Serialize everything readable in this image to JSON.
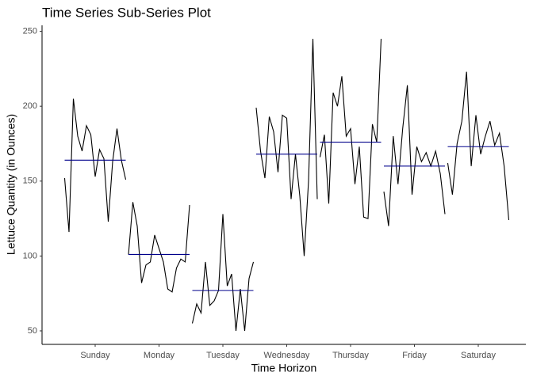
{
  "chart_data": {
    "type": "subseries",
    "title": "Time Series Sub-Series Plot",
    "x_label": "Time Horizon",
    "y_label": "Lettuce Quantity (in Ounces)",
    "categories": [
      "Sunday",
      "Monday",
      "Tuesday",
      "Wednesday",
      "Thursday",
      "Friday",
      "Saturday"
    ],
    "values": [
      [
        152,
        116,
        205,
        180,
        170,
        187,
        181,
        153,
        171,
        165,
        123,
        163,
        185,
        164,
        151
      ],
      [
        101,
        136,
        120,
        82,
        94,
        96,
        114,
        105,
        96,
        78,
        76,
        92,
        98,
        96,
        134
      ],
      [
        55,
        68,
        62,
        96,
        67,
        70,
        77,
        128,
        80,
        88,
        50,
        78,
        50,
        85,
        96
      ],
      [
        199,
        170,
        152,
        193,
        183,
        156,
        194,
        192,
        138,
        168,
        140,
        100,
        150,
        245,
        138
      ],
      [
        166,
        181,
        135,
        209,
        200,
        220,
        180,
        185,
        148,
        173,
        126,
        125,
        188,
        176,
        245
      ],
      [
        143,
        120,
        180,
        148,
        185,
        214,
        141,
        173,
        163,
        169,
        160,
        170,
        155,
        128
      ],
      [
        162,
        141,
        175,
        190,
        223,
        160,
        194,
        168,
        180,
        190,
        174,
        182,
        160,
        124
      ]
    ],
    "means": [
      164,
      101,
      77,
      168,
      176,
      160,
      173
    ],
    "color": "#000000",
    "mean_color": "#00008b",
    "ylim": [
      41,
      254
    ],
    "yticks": [
      50,
      100,
      150,
      200,
      250
    ],
    "grid": false
  }
}
